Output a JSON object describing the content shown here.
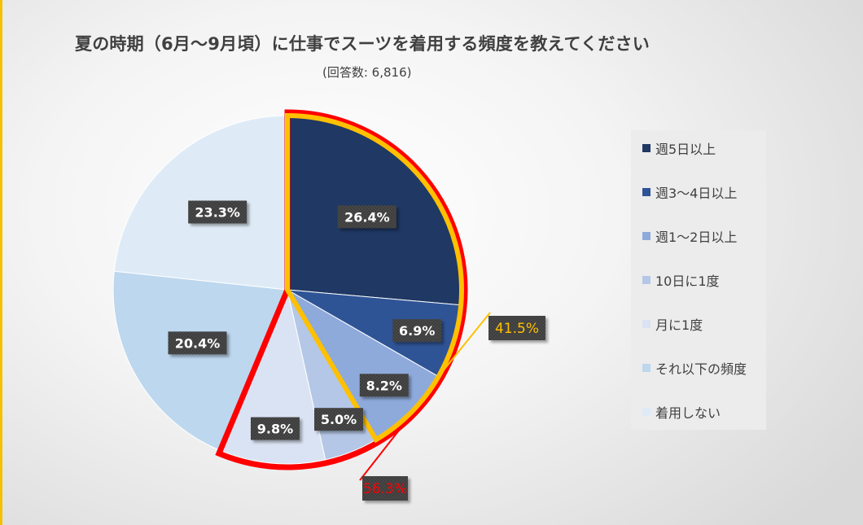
{
  "title": "夏の時期（6月〜9月頃）に仕事でスーツを着用する頻度を教えてください",
  "subtitle": "(回答数: 6,816)",
  "chart_data": {
    "type": "pie",
    "title": "夏の時期（6月〜9月頃）に仕事でスーツを着用する頻度を教えてください",
    "subtitle": "(回答数: 6,816)",
    "categories": [
      "週5日以上",
      "週3〜4日以上",
      "週1〜2日以上",
      "10日に1度",
      "月に1度",
      "それ以下の頻度",
      "着用しない"
    ],
    "values": [
      26.4,
      6.9,
      8.2,
      5.0,
      9.8,
      20.4,
      23.3
    ],
    "labels": [
      "26.4%",
      "6.9%",
      "8.2%",
      "5.0%",
      "9.8%",
      "20.4%",
      "23.3%"
    ],
    "colors": [
      "#1f3864",
      "#2f5496",
      "#8eaadb",
      "#b4c7e7",
      "#dae3f3",
      "#bdd7ee",
      "#deebf7"
    ],
    "legend_position": "right",
    "annotations": [
      {
        "label": "41.5%",
        "categories": [
          "週5日以上",
          "週3〜4日以上",
          "週1〜2日以上"
        ],
        "color": "#ffc000"
      },
      {
        "label": "56.3%",
        "categories": [
          "週5日以上",
          "週3〜4日以上",
          "週1〜2日以上",
          "10日に1度",
          "月に1度"
        ],
        "color": "#ff0000"
      }
    ]
  }
}
